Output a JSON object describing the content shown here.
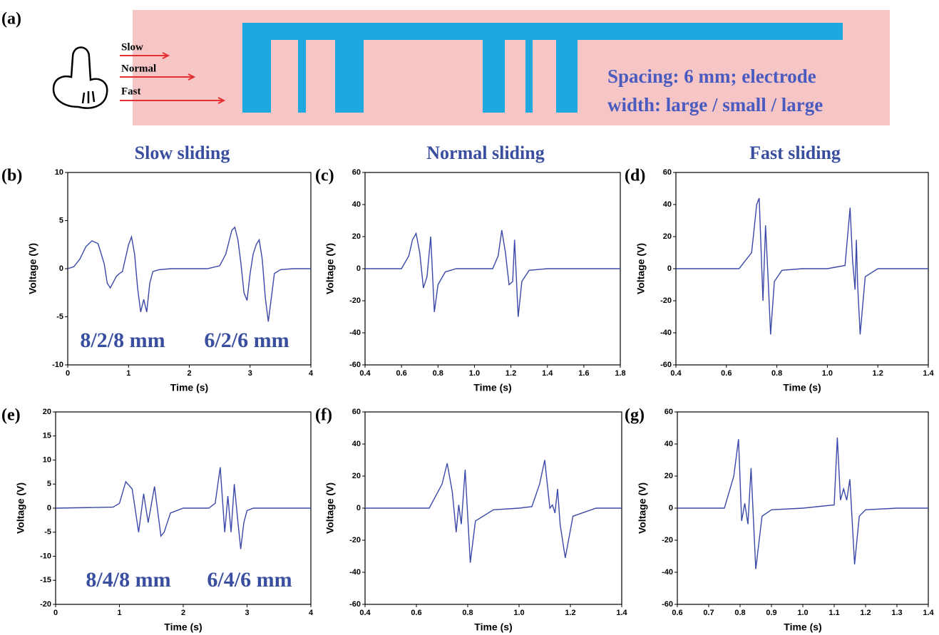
{
  "panel_a": {
    "label": "(a)",
    "speeds": [
      "Slow",
      "Normal",
      "Fast"
    ],
    "note": [
      "Spacing: 6 mm; electrode",
      "width: large / small / large"
    ]
  },
  "chart_data": [
    {
      "type": "line",
      "panel": "(b)",
      "title": "Slow sliding",
      "xlabel": "Time (s)",
      "ylabel": "Voltage (V)",
      "color": "#3a48a8",
      "xlim": [
        0,
        4
      ],
      "xticks": [
        0,
        1,
        2,
        3,
        4
      ],
      "ylim": [
        -10,
        10
      ],
      "yticks": [
        -10,
        -5,
        0,
        5,
        10
      ],
      "annotations": [
        "8/2/8 mm",
        "6/2/6 mm"
      ],
      "x": [
        0,
        0.1,
        0.2,
        0.3,
        0.4,
        0.5,
        0.6,
        0.65,
        0.7,
        0.8,
        0.85,
        0.9,
        1.0,
        1.05,
        1.1,
        1.15,
        1.2,
        1.25,
        1.3,
        1.35,
        1.4,
        1.5,
        1.7,
        2.0,
        2.3,
        2.5,
        2.6,
        2.7,
        2.75,
        2.8,
        2.85,
        2.9,
        2.95,
        3.0,
        3.05,
        3.1,
        3.15,
        3.2,
        3.25,
        3.3,
        3.35,
        3.4,
        3.5,
        3.7,
        4.0
      ],
      "values": [
        0,
        0.2,
        1,
        2.3,
        2.9,
        2.6,
        0.5,
        -1.5,
        -2,
        -0.8,
        -0.5,
        -0.3,
        2.5,
        3.3,
        1.5,
        -2,
        -4.5,
        -3.2,
        -4.5,
        -1.5,
        -0.3,
        -0.1,
        0,
        0,
        0,
        0.3,
        1.5,
        4,
        4.3,
        3,
        0.5,
        -2.5,
        -3.3,
        -0.5,
        1.5,
        2.5,
        3,
        1,
        -3,
        -5.5,
        -3,
        -0.5,
        -0.1,
        0,
        0
      ]
    },
    {
      "type": "line",
      "panel": "(c)",
      "title": "Normal sliding",
      "xlabel": "Time (s)",
      "ylabel": "Voltage (V)",
      "color": "#3a48a8",
      "xlim": [
        0.4,
        1.8
      ],
      "xticks": [
        0.4,
        0.6,
        0.8,
        {
          "value": 1,
          "label": "1.0"
        },
        1.2,
        1.4,
        1.6,
        1.8
      ],
      "ylim": [
        -60,
        60
      ],
      "yticks": [
        -60,
        -40,
        -20,
        0,
        20,
        40,
        60
      ],
      "x": [
        0.4,
        0.6,
        0.64,
        0.66,
        0.68,
        0.7,
        0.72,
        0.74,
        0.76,
        0.78,
        0.8,
        0.84,
        0.9,
        1.0,
        1.1,
        1.13,
        1.15,
        1.17,
        1.19,
        1.21,
        1.22,
        1.24,
        1.26,
        1.3,
        1.4,
        1.6,
        1.8
      ],
      "values": [
        0,
        0,
        8,
        18,
        22,
        10,
        -12,
        -5,
        20,
        -27,
        -10,
        -2,
        0,
        0,
        0,
        8,
        24,
        10,
        -10,
        -8,
        18,
        -30,
        -8,
        -1,
        0,
        0,
        0
      ]
    },
    {
      "type": "line",
      "panel": "(d)",
      "title": "Fast sliding",
      "xlabel": "Time (s)",
      "ylabel": "Voltage (V)",
      "color": "#3a48a8",
      "xlim": [
        0.4,
        1.4
      ],
      "xticks": [
        0.4,
        0.6,
        0.8,
        {
          "value": 1,
          "label": "1.0"
        },
        1.2,
        1.4
      ],
      "ylim": [
        -60,
        60
      ],
      "yticks": [
        -60,
        -40,
        -20,
        0,
        20,
        40,
        60
      ],
      "x": [
        0.4,
        0.65,
        0.7,
        0.72,
        0.73,
        0.745,
        0.755,
        0.765,
        0.775,
        0.79,
        0.82,
        0.9,
        1.0,
        1.07,
        1.09,
        1.1,
        1.11,
        1.115,
        1.12,
        1.13,
        1.15,
        1.2,
        1.4
      ],
      "values": [
        0,
        0,
        10,
        40,
        44,
        -20,
        27,
        -5,
        -41,
        -8,
        -1,
        0,
        0,
        2,
        38,
        5,
        -13,
        18,
        -10,
        -41,
        -5,
        0,
        0
      ]
    },
    {
      "type": "line",
      "panel": "(e)",
      "xlabel": "Time (s)",
      "ylabel": "Voltage (V)",
      "color": "#3a48a8",
      "xlim": [
        0,
        4
      ],
      "xticks": [
        0,
        1,
        2,
        3,
        4
      ],
      "ylim": [
        -20,
        20
      ],
      "yticks": [
        -20,
        -15,
        -10,
        -5,
        0,
        5,
        10,
        15,
        20
      ],
      "annotations": [
        "8/4/8 mm",
        "6/4/6 mm"
      ],
      "x": [
        0,
        0.9,
        1.0,
        1.1,
        1.2,
        1.3,
        1.38,
        1.45,
        1.55,
        1.65,
        1.7,
        1.8,
        2.0,
        2.4,
        2.5,
        2.58,
        2.65,
        2.7,
        2.75,
        2.8,
        2.85,
        2.9,
        2.95,
        3.0,
        3.1,
        3.5,
        4.0
      ],
      "values": [
        0,
        0.2,
        1,
        5.5,
        4,
        -5,
        3,
        -3,
        4.5,
        -5.8,
        -5,
        -1,
        0,
        0,
        1,
        8.5,
        -5,
        2.5,
        -5,
        5,
        -2,
        -8.5,
        -3,
        -0.5,
        0,
        0,
        0
      ]
    },
    {
      "type": "line",
      "panel": "(f)",
      "xlabel": "Time (s)",
      "ylabel": "Voltage (V)",
      "color": "#3a48a8",
      "xlim": [
        0.4,
        1.4
      ],
      "xticks": [
        0.4,
        0.6,
        0.8,
        {
          "value": 1,
          "label": "1.0"
        },
        1.2,
        1.4
      ],
      "ylim": [
        -60,
        60
      ],
      "yticks": [
        -60,
        -40,
        -20,
        0,
        20,
        40,
        60
      ],
      "x": [
        0.4,
        0.65,
        0.7,
        0.72,
        0.74,
        0.755,
        0.765,
        0.775,
        0.79,
        0.81,
        0.83,
        0.9,
        1.0,
        1.05,
        1.08,
        1.1,
        1.12,
        1.13,
        1.14,
        1.15,
        1.16,
        1.18,
        1.21,
        1.3,
        1.4
      ],
      "values": [
        0,
        0,
        15,
        28,
        10,
        -15,
        2,
        -10,
        24,
        -34,
        -8,
        -1,
        0,
        1,
        15,
        30,
        0,
        2,
        -3,
        12,
        -10,
        -31,
        -5,
        0,
        0
      ]
    },
    {
      "type": "line",
      "panel": "(g)",
      "xlabel": "Time (s)",
      "ylabel": "Voltage (V)",
      "color": "#3a48a8",
      "xlim": [
        0.6,
        1.4
      ],
      "xticks": [
        0.6,
        0.7,
        0.8,
        0.9,
        {
          "value": 1,
          "label": "1.0"
        },
        1.1,
        1.2,
        1.3,
        1.4
      ],
      "ylim": [
        -60,
        60
      ],
      "yticks": [
        -60,
        -40,
        -20,
        0,
        20,
        40,
        60
      ],
      "x": [
        0.6,
        0.75,
        0.78,
        0.795,
        0.805,
        0.815,
        0.825,
        0.835,
        0.85,
        0.87,
        0.9,
        1.0,
        1.1,
        1.11,
        1.12,
        1.13,
        1.14,
        1.15,
        1.165,
        1.18,
        1.2,
        1.3,
        1.4
      ],
      "values": [
        0,
        0,
        20,
        43,
        -8,
        3,
        -10,
        25,
        -38,
        -5,
        -1,
        0,
        2,
        44,
        5,
        12,
        5,
        18,
        -35,
        -5,
        -1,
        0,
        0
      ]
    }
  ]
}
